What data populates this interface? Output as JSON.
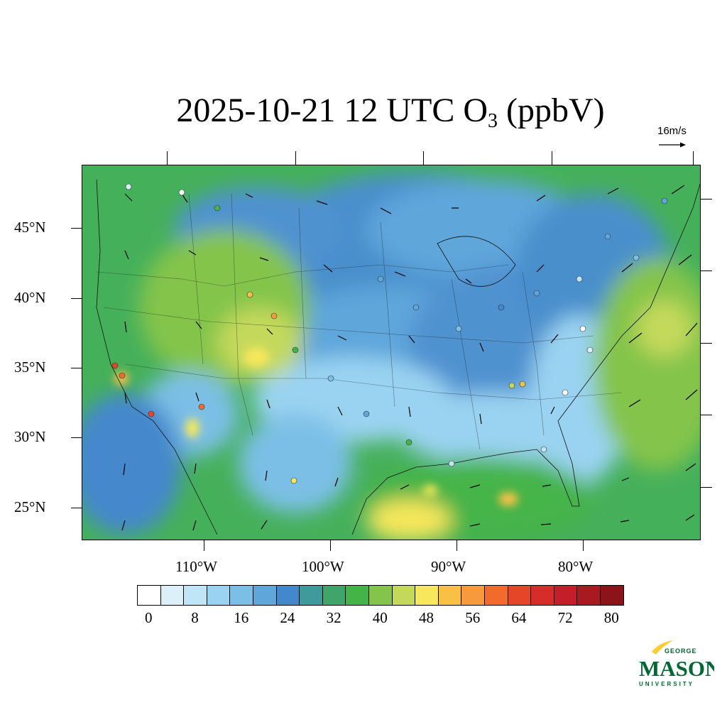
{
  "title": {
    "prefix": "2025-10-21 12 UTC O",
    "subscript": "3",
    "suffix": " (ppbV)"
  },
  "reference_vector": {
    "label": "16m/s",
    "icon": "arrow-right-icon"
  },
  "map": {
    "region": "Contiguous United States",
    "projection": "Lambert conformal",
    "field": "O3 concentration",
    "units": "ppbV",
    "overlays": [
      "wind-vectors",
      "monitoring-station-dots",
      "state-boundaries"
    ]
  },
  "latitude_labels": [
    "45°N",
    "40°N",
    "35°N",
    "30°N",
    "25°N"
  ],
  "longitude_labels": [
    "110°W",
    "100°W",
    "90°W",
    "80°W"
  ],
  "colorbar": {
    "colors": [
      "#ffffff",
      "#dcf0fa",
      "#bfe5f7",
      "#9ad3f1",
      "#7cbfe6",
      "#5fa6db",
      "#4488cc",
      "#3f9a9c",
      "#3fa56a",
      "#45b448",
      "#84c44c",
      "#c4d95b",
      "#f6e75c",
      "#f8c146",
      "#f69a3d",
      "#f26a2c",
      "#e44627",
      "#d62d2a",
      "#c41e2a",
      "#a81a20",
      "#8b1418"
    ],
    "tick_labels": [
      "0",
      "8",
      "16",
      "24",
      "32",
      "40",
      "48",
      "56",
      "64",
      "72",
      "80"
    ]
  },
  "logo": {
    "line1": "GEORGE",
    "line2": "MASON",
    "line3": "UNIVERSITY",
    "color_green": "#006633",
    "color_gold": "#ffcc33"
  }
}
